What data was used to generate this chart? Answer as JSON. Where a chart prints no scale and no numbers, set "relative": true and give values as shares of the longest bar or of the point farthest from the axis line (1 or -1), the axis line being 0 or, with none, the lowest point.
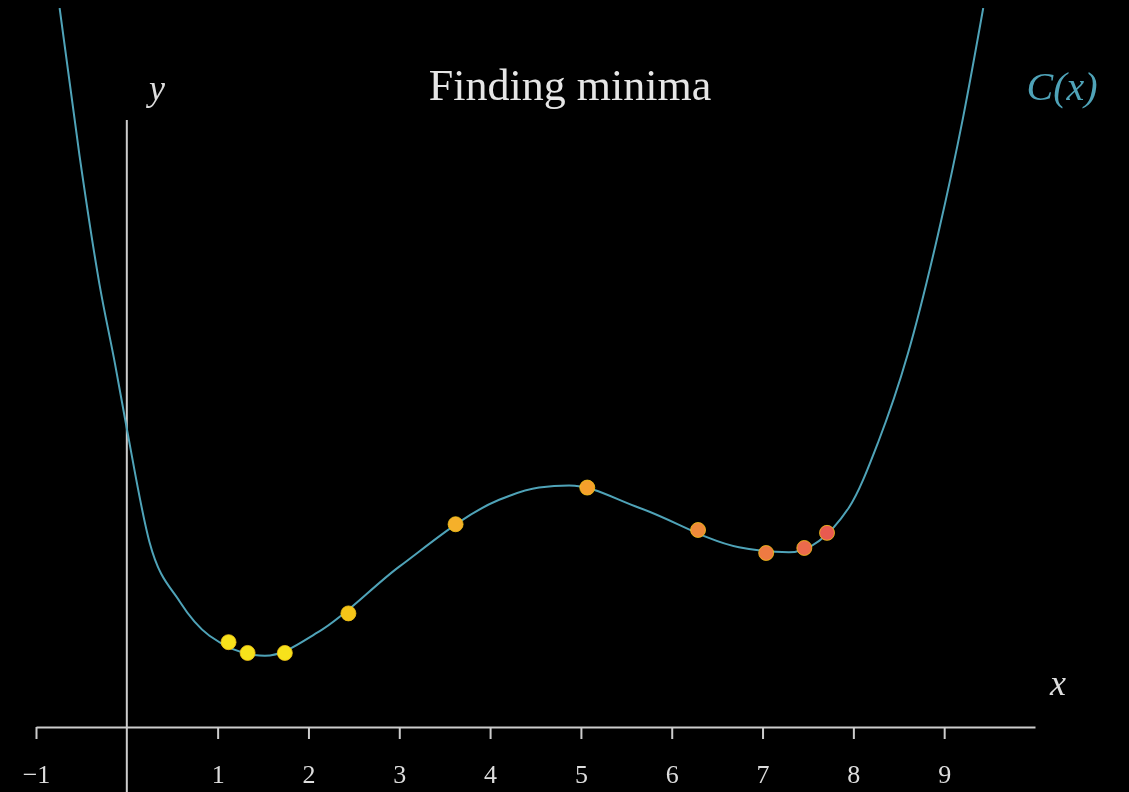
{
  "chart_data": {
    "type": "line",
    "title": "Finding minima",
    "xlabel": "x",
    "ylabel": "y",
    "relative": true,
    "legend": false,
    "grid": false,
    "xlim": [
      -1,
      10
    ],
    "xticks": [
      {
        "value": -1,
        "label": "−1"
      },
      1,
      2,
      3,
      4,
      5,
      6,
      7,
      8,
      9
    ],
    "series": [
      {
        "name": "C(x)",
        "type": "line",
        "color": "#4fa3b8",
        "marker": "none",
        "x": [
          -0.74,
          -0.52,
          -0.3,
          -0.13,
          0,
          0.25,
          0.58,
          0.91,
          1.52,
          2.12,
          3.0,
          4.1,
          4.54,
          4.87,
          5.64,
          6.74,
          7.29,
          7.95,
          8.27,
          8.6,
          8.93,
          9.21,
          9.43
        ],
        "values": [
          1.0,
          0.794,
          0.615,
          0.505,
          0.415,
          0.257,
          0.175,
          0.127,
          0.099,
          0.133,
          0.223,
          0.316,
          0.333,
          0.336,
          0.305,
          0.25,
          0.243,
          0.305,
          0.395,
          0.519,
          0.684,
          0.849,
          1.0
        ]
      },
      {
        "type": "scatter",
        "marker": "circle",
        "color": "#f5c518",
        "colors": [
          "#f7e21b",
          "#f7e21b",
          "#f7e21b",
          "#f5c518",
          "#f5b02a",
          "#f5a02c",
          "#f08a3a",
          "#ee7a42",
          "#ec6a4c",
          "#e85a50"
        ],
        "x": [
          1.12,
          1.33,
          1.74,
          2.44,
          3.62,
          5.07,
          6.29,
          7.04,
          7.46,
          7.71
        ],
        "values": [
          0.118,
          0.103,
          0.103,
          0.158,
          0.282,
          0.333,
          0.274,
          0.242,
          0.249,
          0.27
        ]
      }
    ]
  }
}
